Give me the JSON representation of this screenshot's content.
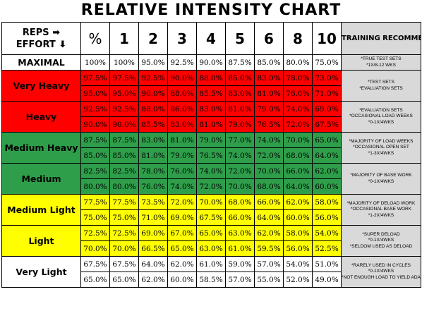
{
  "title": "RELATIVE INTENSITY CHART",
  "header": {
    "reps_label": "REPS",
    "effort_label": "EFFORT",
    "arrow_right": "➡",
    "arrow_down": "⬇",
    "columns": [
      "%",
      "1",
      "2",
      "3",
      "4",
      "5",
      "6",
      "8",
      "10"
    ],
    "training_label": "TRAINING RECOMMENDATIONS"
  },
  "colors": {
    "red": "#ff0000",
    "orange_red": "#ff0000",
    "green": "#2e9e4a",
    "yellow": "#ffff00",
    "white": "#ffffff",
    "gray": "#d9d9d9"
  },
  "maximal": {
    "label": "MAXIMAL",
    "values": [
      "100%",
      "100%",
      "95.0%",
      "92.5%",
      "90.0%",
      "87.5%",
      "85.0%",
      "80.0%",
      "75.0%"
    ],
    "rec": "*TRUE TEST SETS\n*1X/8-12 WKS"
  },
  "groups": [
    {
      "label": "Very Heavy",
      "color": "#ff0000",
      "rows": [
        [
          "97.5%",
          "97.5%",
          "92.5%",
          "90.0%",
          "88.0%",
          "85.0%",
          "83.0%",
          "78.0%",
          "73.0%"
        ],
        [
          "95.0%",
          "95.0%",
          "90.0%",
          "88.0%",
          "85.5%",
          "83.0%",
          "81.0%",
          "76.0%",
          "71.0%"
        ]
      ],
      "rec": "*TEST SETS\n*EVALUATION SETS"
    },
    {
      "label": "Heavy",
      "color": "#ff0000",
      "rows": [
        [
          "92.5%",
          "92.5%",
          "88.0%",
          "86.0%",
          "83.0%",
          "81.0%",
          "79.0%",
          "74.0%",
          "69.0%"
        ],
        [
          "90.0%",
          "90.0%",
          "85.5%",
          "83.0%",
          "81.0%",
          "79.0%",
          "76.5%",
          "72.0%",
          "67.5%"
        ]
      ],
      "rec": "*EVALUATION SETS\n*OCCASIONAL LOAD WEEKS\n*0-1X/4WKS"
    },
    {
      "label": "Medium Heavy",
      "color": "#2e9e4a",
      "rows": [
        [
          "87.5%",
          "87.5%",
          "83.0%",
          "81.0%",
          "79.0%",
          "77.0%",
          "74.0%",
          "70.0%",
          "65.0%"
        ],
        [
          "85.0%",
          "85.0%",
          "81.0%",
          "79.0%",
          "76.5%",
          "74.0%",
          "72.0%",
          "68.0%",
          "64.0%"
        ]
      ],
      "rec": "*MAJORITY OF LOAD WEEKS\n*OCCASIONAL OPEN SET\n*1-3X/4WKS"
    },
    {
      "label": "Medium",
      "color": "#2e9e4a",
      "rows": [
        [
          "82.5%",
          "82.5%",
          "78.0%",
          "76.0%",
          "74.0%",
          "72.0%",
          "70.0%",
          "66.0%",
          "62.0%"
        ],
        [
          "80.0%",
          "80.0%",
          "76.0%",
          "74.0%",
          "72.0%",
          "70.0%",
          "68.0%",
          "64.0%",
          "60.0%"
        ]
      ],
      "rec": "*MAJORITY OF BASE WORK\n*0-1X/4WKS"
    },
    {
      "label": "Medium Light",
      "color": "#ffff00",
      "rows": [
        [
          "77.5%",
          "77.5%",
          "73.5%",
          "72.0%",
          "70.0%",
          "68.0%",
          "66.0%",
          "62.0%",
          "58.0%"
        ],
        [
          "75.0%",
          "75.0%",
          "71.0%",
          "69.0%",
          "67.5%",
          "66.0%",
          "64.0%",
          "60.0%",
          "56.0%"
        ]
      ],
      "rec": "*MAJORITY OF DELOAD WORK\n*OCCASIONAL BASE WORK\n*1-2X/4WKS"
    },
    {
      "label": "Light",
      "color": "#ffff00",
      "rows": [
        [
          "72.5%",
          "72.5%",
          "69.0%",
          "67.0%",
          "65.0%",
          "63.0%",
          "62.0%",
          "58.0%",
          "54.0%"
        ],
        [
          "70.0%",
          "70.0%",
          "66.5%",
          "65.0%",
          "63.0%",
          "61.0%",
          "59.5%",
          "56.0%",
          "52.5%"
        ]
      ],
      "rec": "*SUPER DELOAD\n*0-1X/4WKS\n*SELDOM USED AS DELOAD"
    },
    {
      "label": "Very Light",
      "color": "#ffffff",
      "rows": [
        [
          "67.5%",
          "67.5%",
          "64.0%",
          "62.0%",
          "61.0%",
          "59.0%",
          "57.0%",
          "54.0%",
          "51.0%"
        ],
        [
          "65.0%",
          "65.0%",
          "62.0%",
          "60.0%",
          "58.5%",
          "57.0%",
          "55.0%",
          "52.0%",
          "49.0%"
        ]
      ],
      "rec": "*RARELY USED IN CYCLES\n*0-1X/4WKS\n*NOT ENOUGH LOAD TO YIELD ADAPTATION"
    }
  ]
}
